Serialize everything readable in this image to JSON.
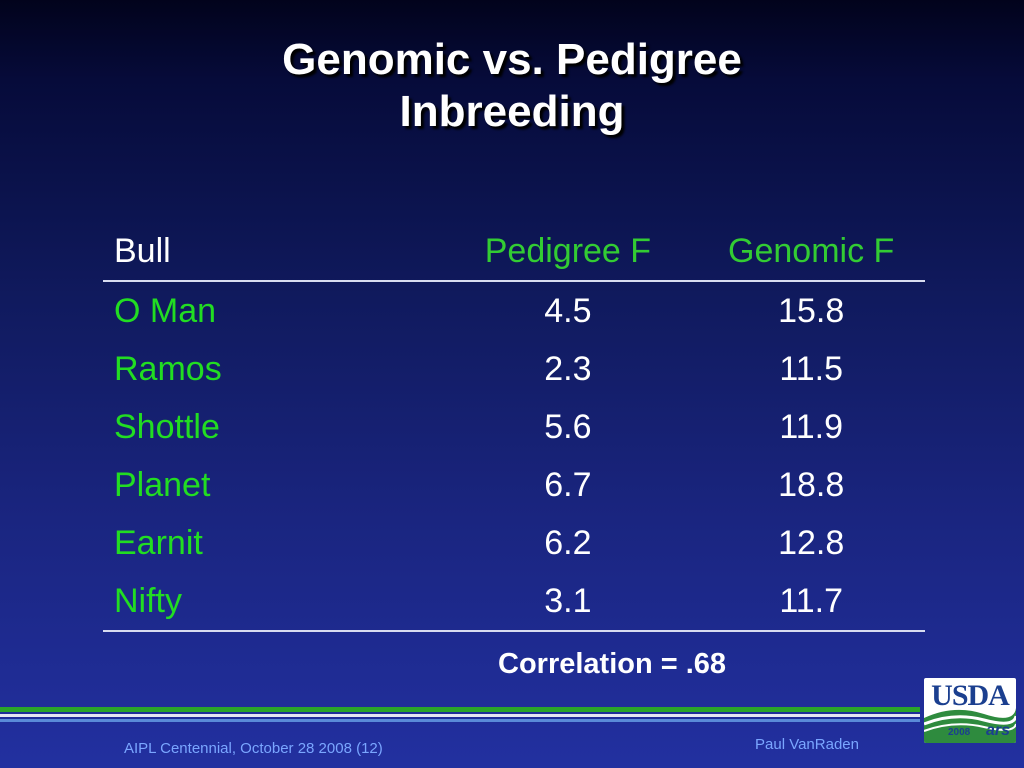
{
  "slide": {
    "title_line1": "Genomic vs. Pedigree",
    "title_line2": "Inbreeding"
  },
  "table": {
    "headers": [
      "Bull",
      "Pedigree F",
      "Genomic F"
    ],
    "rows": [
      [
        "O Man",
        "4.5",
        "15.8"
      ],
      [
        "Ramos",
        "2.3",
        "11.5"
      ],
      [
        "Shottle",
        "5.6",
        "11.9"
      ],
      [
        "Planet",
        "6.7",
        "18.8"
      ],
      [
        "Earnit",
        "6.2",
        "12.8"
      ],
      [
        "Nifty",
        "3.1",
        "11.7"
      ]
    ]
  },
  "correlation": "Correlation = .68",
  "footer": {
    "left": "AIPL Centennial, October 28 2008 (12)",
    "right": "Paul VanRaden"
  },
  "logo": {
    "text": "USDA",
    "year": "2008",
    "ars": "ars"
  },
  "colors": {
    "background": "#1a2580",
    "header_green": "#33cc33",
    "bull_green": "#22dd22",
    "footer_text": "#7aa6ff"
  }
}
